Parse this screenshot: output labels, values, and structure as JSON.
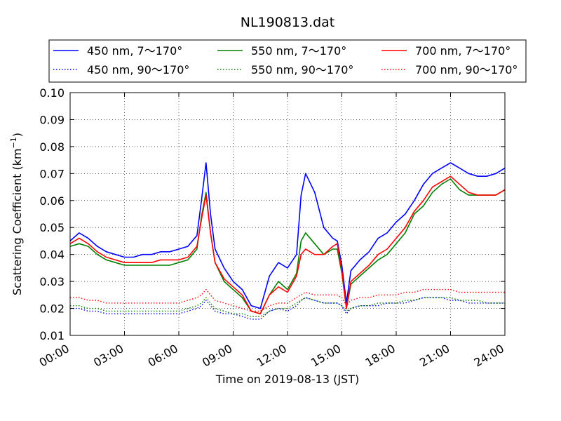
{
  "chart_data": {
    "type": "line",
    "title": "NL190813.dat",
    "xlabel": "Time on 2019-08-13 (JST)",
    "ylabel": "Scattering Coefficient (km",
    "ylabel_sup": "−1",
    "ylabel_end": ")",
    "x_unit": "hour",
    "xlim": [
      0,
      24
    ],
    "ylim": [
      0.01,
      0.1
    ],
    "grid": true,
    "legend": {
      "placement": "top",
      "columns": 3
    },
    "xticks": [
      {
        "value": 0,
        "label": "00:00"
      },
      {
        "value": 3,
        "label": "03:00"
      },
      {
        "value": 6,
        "label": "06:00"
      },
      {
        "value": 9,
        "label": "09:00"
      },
      {
        "value": 12,
        "label": "12:00"
      },
      {
        "value": 15,
        "label": "15:00"
      },
      {
        "value": 18,
        "label": "18:00"
      },
      {
        "value": 21,
        "label": "21:00"
      },
      {
        "value": 24,
        "label": "24:00"
      }
    ],
    "yticks": [
      {
        "value": 0.01,
        "label": "0.01"
      },
      {
        "value": 0.02,
        "label": "0.02"
      },
      {
        "value": 0.03,
        "label": "0.03"
      },
      {
        "value": 0.04,
        "label": "0.04"
      },
      {
        "value": 0.05,
        "label": "0.05"
      },
      {
        "value": 0.06,
        "label": "0.06"
      },
      {
        "value": 0.07,
        "label": "0.07"
      },
      {
        "value": 0.08,
        "label": "0.08"
      },
      {
        "value": 0.09,
        "label": "0.09"
      },
      {
        "value": 0.1,
        "label": "0.10"
      }
    ],
    "x": [
      0,
      0.5,
      1,
      1.5,
      2,
      2.5,
      3,
      3.5,
      4,
      4.5,
      5,
      5.5,
      6,
      6.5,
      7,
      7.25,
      7.5,
      7.75,
      8,
      8.5,
      9,
      9.5,
      10,
      10.5,
      11,
      11.5,
      12,
      12.5,
      12.75,
      13,
      13.5,
      14,
      14.5,
      14.75,
      15,
      15.25,
      15.5,
      16,
      16.5,
      17,
      17.5,
      18,
      18.5,
      19,
      19.5,
      20,
      20.5,
      21,
      21.5,
      22,
      22.5,
      23,
      23.5,
      24
    ],
    "series": [
      {
        "name": "450 nm, 7～170°",
        "color": "#0000ff",
        "style": "solid",
        "values": [
          0.045,
          0.048,
          0.046,
          0.043,
          0.041,
          0.04,
          0.039,
          0.039,
          0.04,
          0.04,
          0.041,
          0.041,
          0.042,
          0.043,
          0.047,
          0.06,
          0.074,
          0.055,
          0.042,
          0.035,
          0.03,
          0.027,
          0.021,
          0.02,
          0.032,
          0.037,
          0.035,
          0.04,
          0.062,
          0.07,
          0.063,
          0.05,
          0.046,
          0.045,
          0.036,
          0.022,
          0.034,
          0.038,
          0.041,
          0.046,
          0.048,
          0.052,
          0.055,
          0.06,
          0.066,
          0.07,
          0.072,
          0.074,
          0.072,
          0.07,
          0.069,
          0.069,
          0.07,
          0.072
        ]
      },
      {
        "name": "550 nm, 7～170°",
        "color": "#008000",
        "style": "solid",
        "values": [
          0.043,
          0.044,
          0.043,
          0.04,
          0.038,
          0.037,
          0.036,
          0.036,
          0.036,
          0.036,
          0.036,
          0.036,
          0.037,
          0.038,
          0.042,
          0.054,
          0.063,
          0.048,
          0.037,
          0.03,
          0.027,
          0.024,
          0.019,
          0.018,
          0.025,
          0.03,
          0.027,
          0.033,
          0.045,
          0.048,
          0.044,
          0.04,
          0.042,
          0.042,
          0.033,
          0.02,
          0.029,
          0.032,
          0.035,
          0.038,
          0.04,
          0.044,
          0.048,
          0.055,
          0.058,
          0.063,
          0.066,
          0.068,
          0.064,
          0.062,
          0.062,
          0.062,
          0.062,
          0.064
        ]
      },
      {
        "name": "700 nm, 7～170°",
        "color": "#ff0000",
        "style": "solid",
        "values": [
          0.044,
          0.046,
          0.044,
          0.041,
          0.039,
          0.038,
          0.037,
          0.037,
          0.037,
          0.037,
          0.038,
          0.038,
          0.038,
          0.039,
          0.043,
          0.053,
          0.062,
          0.048,
          0.037,
          0.031,
          0.028,
          0.025,
          0.019,
          0.018,
          0.025,
          0.028,
          0.026,
          0.032,
          0.04,
          0.042,
          0.04,
          0.04,
          0.043,
          0.044,
          0.034,
          0.02,
          0.03,
          0.033,
          0.036,
          0.04,
          0.042,
          0.046,
          0.05,
          0.056,
          0.06,
          0.065,
          0.067,
          0.069,
          0.066,
          0.063,
          0.062,
          0.062,
          0.062,
          0.064
        ]
      },
      {
        "name": "450 nm, 90～170°",
        "color": "#0000ff",
        "style": "dotted",
        "values": [
          0.02,
          0.02,
          0.019,
          0.019,
          0.018,
          0.018,
          0.018,
          0.018,
          0.018,
          0.018,
          0.018,
          0.018,
          0.018,
          0.019,
          0.02,
          0.021,
          0.023,
          0.021,
          0.019,
          0.018,
          0.018,
          0.017,
          0.016,
          0.016,
          0.019,
          0.02,
          0.019,
          0.021,
          0.023,
          0.024,
          0.023,
          0.022,
          0.022,
          0.022,
          0.021,
          0.018,
          0.02,
          0.021,
          0.021,
          0.021,
          0.022,
          0.022,
          0.022,
          0.023,
          0.024,
          0.024,
          0.024,
          0.023,
          0.023,
          0.022,
          0.022,
          0.022,
          0.022,
          0.022
        ]
      },
      {
        "name": "550 nm, 90～170°",
        "color": "#008000",
        "style": "dotted",
        "values": [
          0.021,
          0.021,
          0.02,
          0.02,
          0.019,
          0.019,
          0.019,
          0.019,
          0.019,
          0.019,
          0.019,
          0.019,
          0.019,
          0.02,
          0.021,
          0.022,
          0.024,
          0.022,
          0.02,
          0.019,
          0.018,
          0.018,
          0.017,
          0.017,
          0.019,
          0.02,
          0.02,
          0.022,
          0.023,
          0.024,
          0.023,
          0.022,
          0.022,
          0.022,
          0.021,
          0.019,
          0.02,
          0.021,
          0.021,
          0.022,
          0.022,
          0.022,
          0.023,
          0.023,
          0.024,
          0.024,
          0.024,
          0.024,
          0.023,
          0.023,
          0.023,
          0.022,
          0.022,
          0.022
        ]
      },
      {
        "name": "700 nm, 90～170°",
        "color": "#ff0000",
        "style": "dotted",
        "values": [
          0.024,
          0.024,
          0.023,
          0.023,
          0.022,
          0.022,
          0.022,
          0.022,
          0.022,
          0.022,
          0.022,
          0.022,
          0.022,
          0.023,
          0.024,
          0.025,
          0.027,
          0.025,
          0.023,
          0.022,
          0.021,
          0.02,
          0.019,
          0.019,
          0.021,
          0.022,
          0.022,
          0.024,
          0.025,
          0.026,
          0.025,
          0.025,
          0.025,
          0.025,
          0.024,
          0.021,
          0.023,
          0.024,
          0.024,
          0.025,
          0.025,
          0.025,
          0.026,
          0.026,
          0.027,
          0.027,
          0.027,
          0.027,
          0.026,
          0.026,
          0.026,
          0.026,
          0.026,
          0.026
        ]
      }
    ]
  }
}
